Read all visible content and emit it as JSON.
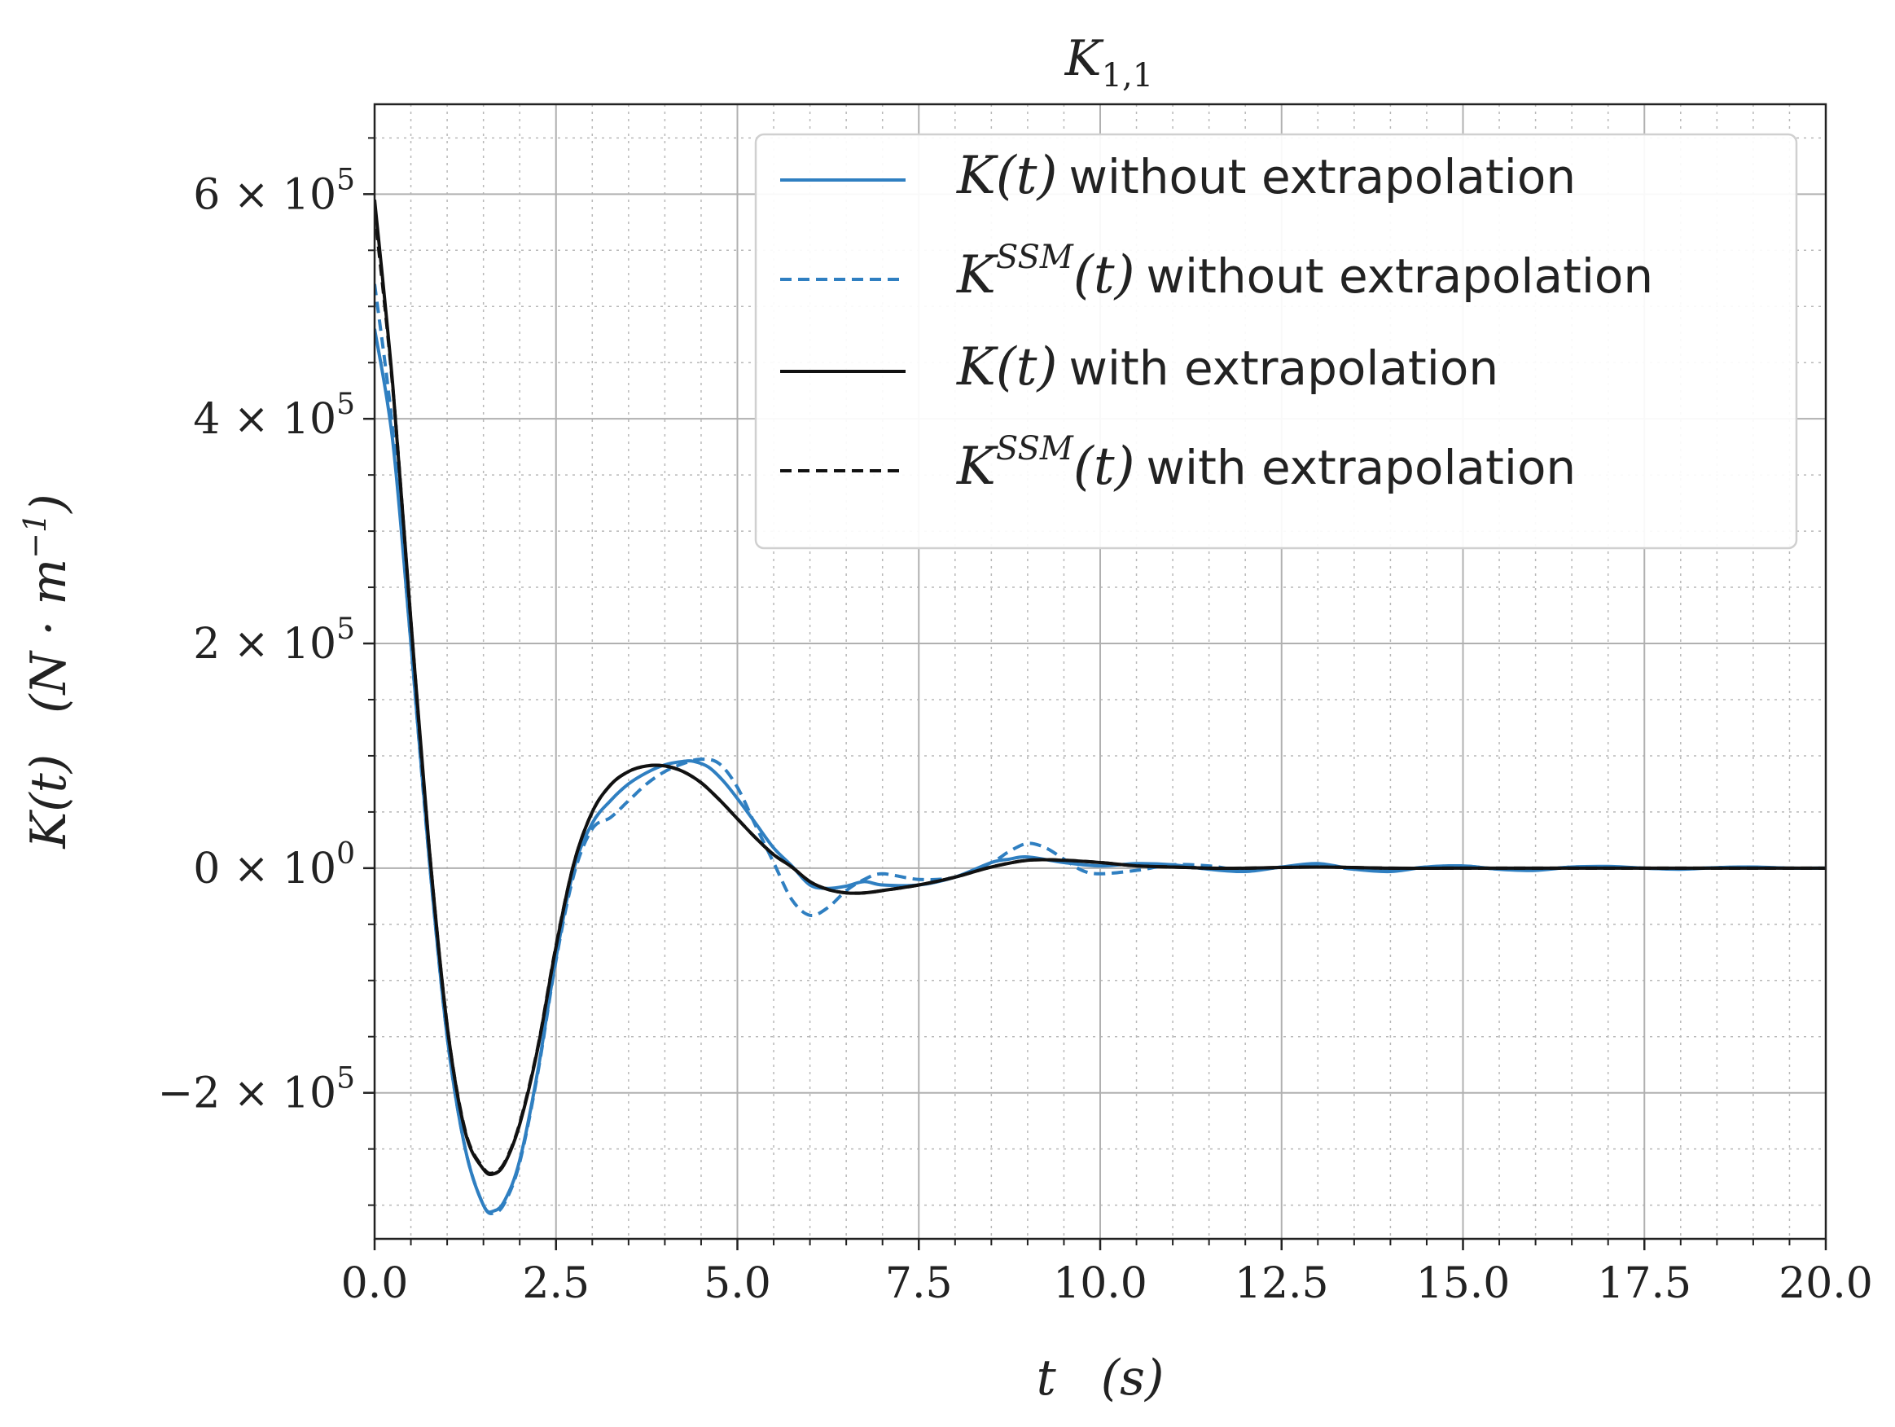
{
  "chart_data": {
    "type": "line",
    "title_base": "K",
    "title_sub": "1,1",
    "xlabel_var": "t",
    "xlabel_unit": "(s)",
    "ylabel_var": "K(t)",
    "ylabel_unit": "(N · m",
    "ylabel_unit_exp": "−1",
    "ylabel_unit_close": ")",
    "xlim": [
      0,
      20
    ],
    "ylim": [
      -330000,
      680000
    ],
    "grid": true,
    "minor_grid": true,
    "legend_position": "top-right",
    "x_ticks": [
      {
        "value": 0,
        "label": "0.0"
      },
      {
        "value": 2.5,
        "label": "2.5"
      },
      {
        "value": 5,
        "label": "5.0"
      },
      {
        "value": 7.5,
        "label": "7.5"
      },
      {
        "value": 10,
        "label": "10.0"
      },
      {
        "value": 12.5,
        "label": "12.5"
      },
      {
        "value": 15,
        "label": "15.0"
      },
      {
        "value": 17.5,
        "label": "17.5"
      },
      {
        "value": 20,
        "label": "20.0"
      }
    ],
    "y_ticks": [
      {
        "value": 600000,
        "mantissa": "6 × 10",
        "exp": "5"
      },
      {
        "value": 400000,
        "mantissa": "4 × 10",
        "exp": "5"
      },
      {
        "value": 200000,
        "mantissa": "2 × 10",
        "exp": "5"
      },
      {
        "value": 0,
        "mantissa": "0 × 10",
        "exp": "0"
      },
      {
        "value": -200000,
        "mantissa": "−2 × 10",
        "exp": "5"
      }
    ],
    "series": [
      {
        "name": "K(t) without extrapolation",
        "legend_math": "K(t)",
        "legend_sup": "",
        "legend_suffix": "without extrapolation",
        "color": "#2f7fc1",
        "dash": "solid",
        "x": [
          0,
          0.25,
          0.5,
          0.75,
          1.0,
          1.25,
          1.5,
          1.65,
          1.8,
          2.0,
          2.25,
          2.5,
          2.75,
          3.0,
          3.25,
          3.5,
          3.75,
          4.0,
          4.25,
          4.4,
          4.6,
          4.8,
          5.0,
          5.25,
          5.5,
          5.75,
          6.0,
          6.25,
          6.5,
          6.75,
          7.0,
          7.5,
          8.0,
          8.5,
          8.75,
          9.0,
          9.5,
          10.0,
          10.5,
          11.0,
          11.5,
          12.0,
          12.5,
          13.0,
          13.5,
          14.0,
          14.5,
          15.0,
          15.5,
          16.0,
          16.5,
          17.0,
          17.5,
          18.0,
          18.5,
          19.0,
          19.5,
          20.0
        ],
        "y": [
          480000,
          380000,
          200000,
          10000,
          -150000,
          -250000,
          -300000,
          -305000,
          -295000,
          -260000,
          -180000,
          -80000,
          0,
          40000,
          60000,
          75000,
          85000,
          92000,
          95000,
          95000,
          90000,
          78000,
          62000,
          40000,
          18000,
          2000,
          -15000,
          -18000,
          -16000,
          -12000,
          -15000,
          -15000,
          -8000,
          5000,
          8000,
          10000,
          5000,
          2000,
          4000,
          3000,
          -1000,
          -3000,
          1000,
          4000,
          -1000,
          -3000,
          1000,
          2000,
          -1000,
          -2000,
          1000,
          1500,
          0,
          -1000,
          500,
          1000,
          0,
          0
        ]
      },
      {
        "name": "K^SSM(t) without extrapolation",
        "legend_math": "K",
        "legend_sup": "SSM",
        "legend_suffix": "without extrapolation",
        "color": "#2f7fc1",
        "dash": "dashed",
        "x": [
          0,
          0.25,
          0.5,
          0.75,
          1.0,
          1.25,
          1.5,
          1.65,
          1.8,
          2.0,
          2.25,
          2.5,
          2.75,
          3.0,
          3.25,
          3.5,
          3.75,
          4.0,
          4.25,
          4.5,
          4.75,
          5.0,
          5.25,
          5.5,
          5.75,
          6.0,
          6.25,
          6.5,
          6.75,
          7.0,
          7.5,
          8.0,
          8.5,
          8.75,
          9.0,
          9.25,
          9.5,
          9.75,
          10.0,
          10.5,
          11.0,
          11.5,
          12.0,
          12.5,
          13.0,
          13.5,
          14.0,
          14.5,
          15.0,
          15.5,
          16.0,
          16.5,
          17.0,
          17.5,
          18.0,
          18.5,
          19.0,
          19.5,
          20.0
        ],
        "y": [
          520000,
          390000,
          200000,
          10000,
          -150000,
          -250000,
          -300000,
          -307000,
          -297000,
          -262000,
          -182000,
          -82000,
          -5000,
          35000,
          45000,
          60000,
          75000,
          86000,
          93000,
          97000,
          93000,
          72000,
          38000,
          5000,
          -28000,
          -42000,
          -35000,
          -20000,
          -10000,
          -5000,
          -10000,
          -8000,
          5000,
          15000,
          22000,
          18000,
          8000,
          -2000,
          -5000,
          -2000,
          3000,
          2000,
          -2000,
          1000,
          3000,
          -1000,
          -2000,
          1000,
          2000,
          -1000,
          -1500,
          1000,
          1000,
          0,
          -800,
          500,
          800,
          0,
          0
        ]
      },
      {
        "name": "K(t) with extrapolation",
        "legend_math": "K(t)",
        "legend_sup": "",
        "legend_suffix": "with extrapolation",
        "color": "#111111",
        "dash": "solid",
        "x": [
          0,
          0.25,
          0.5,
          0.75,
          1.0,
          1.25,
          1.5,
          1.65,
          1.8,
          2.0,
          2.25,
          2.5,
          2.75,
          3.0,
          3.25,
          3.5,
          3.75,
          4.0,
          4.25,
          4.5,
          4.75,
          5.0,
          5.25,
          5.5,
          5.75,
          6.0,
          6.25,
          6.5,
          6.75,
          7.0,
          7.5,
          8.0,
          8.5,
          9.0,
          9.5,
          10.0,
          10.5,
          11.0,
          11.5,
          12.0,
          13.0,
          14.0,
          15.0,
          16.0,
          17.0,
          18.0,
          19.0,
          20.0
        ],
        "y": [
          595000,
          430000,
          220000,
          20000,
          -140000,
          -235000,
          -268000,
          -272000,
          -262000,
          -228000,
          -160000,
          -70000,
          5000,
          50000,
          74000,
          86000,
          91000,
          91000,
          86000,
          76000,
          61000,
          44000,
          27000,
          12000,
          1000,
          -12000,
          -19000,
          -22000,
          -22000,
          -20000,
          -15000,
          -8000,
          1000,
          7000,
          7000,
          5000,
          2000,
          1000,
          0,
          0,
          1000,
          0,
          0,
          0,
          0,
          0,
          0,
          0
        ]
      },
      {
        "name": "K^SSM(t) with extrapolation",
        "legend_math": "K",
        "legend_sup": "SSM",
        "legend_suffix": "with extrapolation",
        "color": "#111111",
        "dash": "dashed",
        "x": [
          0,
          0.25,
          0.5,
          0.75,
          1.0,
          1.25,
          1.5,
          1.65,
          1.8,
          2.0,
          2.25,
          2.5,
          2.75,
          3.0,
          3.25,
          3.5,
          3.75,
          4.0,
          4.25,
          4.5,
          4.75,
          5.0,
          5.25,
          5.5,
          5.75,
          6.0,
          6.25,
          6.5,
          6.75,
          7.0,
          7.5,
          8.0,
          8.5,
          9.0,
          9.5,
          10.0,
          10.5,
          11.0,
          11.5,
          12.0,
          13.0,
          14.0,
          15.0,
          16.0,
          17.0,
          18.0,
          19.0,
          20.0
        ],
        "y": [
          585000,
          428000,
          219000,
          20000,
          -140000,
          -234000,
          -267000,
          -271000,
          -261000,
          -227000,
          -159000,
          -69000,
          5000,
          50000,
          74000,
          86000,
          91000,
          91000,
          86000,
          76000,
          61000,
          44000,
          27000,
          12000,
          1000,
          -12000,
          -19000,
          -22000,
          -22000,
          -20000,
          -15000,
          -8000,
          1000,
          7000,
          7000,
          5000,
          2000,
          1000,
          0,
          0,
          1000,
          0,
          0,
          0,
          0,
          0,
          0,
          0
        ]
      }
    ]
  }
}
